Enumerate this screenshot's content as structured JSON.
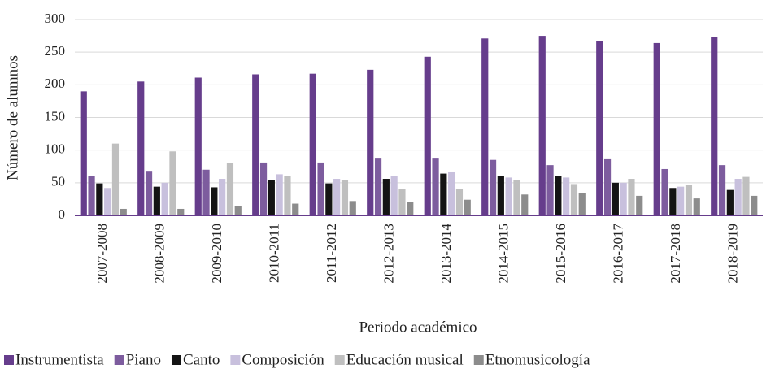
{
  "chart_data": {
    "type": "bar",
    "x_label": "Periodo académico",
    "y_label": "Número de alumnos",
    "categories": [
      "2007-2008",
      "2008-2009",
      "2009-2010",
      "2010-2011",
      "2011-2012",
      "2012-2013",
      "2013-2014",
      "2014-2015",
      "2015-2016",
      "2016-2017",
      "2017-2018",
      "2018-2019"
    ],
    "series": [
      {
        "name": "Instrumentista",
        "color": "#663d8c",
        "values": [
          190,
          205,
          211,
          216,
          217,
          223,
          243,
          271,
          275,
          267,
          264,
          273
        ]
      },
      {
        "name": "Piano",
        "color": "#7d5c9e",
        "values": [
          60,
          67,
          70,
          81,
          81,
          87,
          87,
          85,
          77,
          86,
          71,
          77
        ]
      },
      {
        "name": "Canto",
        "color": "#141414",
        "values": [
          49,
          44,
          43,
          54,
          49,
          56,
          64,
          60,
          60,
          50,
          42,
          39
        ]
      },
      {
        "name": "Composición",
        "color": "#c8c0dd",
        "values": [
          42,
          50,
          56,
          63,
          56,
          61,
          66,
          58,
          58,
          50,
          44,
          56
        ]
      },
      {
        "name": "Educación musical",
        "color": "#bfbfbf",
        "values": [
          110,
          98,
          80,
          61,
          54,
          40,
          40,
          54,
          48,
          56,
          47,
          59
        ]
      },
      {
        "name": "Etnomusicología",
        "color": "#8c8c8c",
        "values": [
          10,
          10,
          14,
          18,
          22,
          20,
          24,
          32,
          34,
          30,
          26,
          30
        ]
      }
    ],
    "ylim": [
      0,
      300
    ],
    "yticks": [
      0,
      50,
      100,
      150,
      200,
      250,
      300
    ],
    "grid": true,
    "legend": "bottom"
  }
}
